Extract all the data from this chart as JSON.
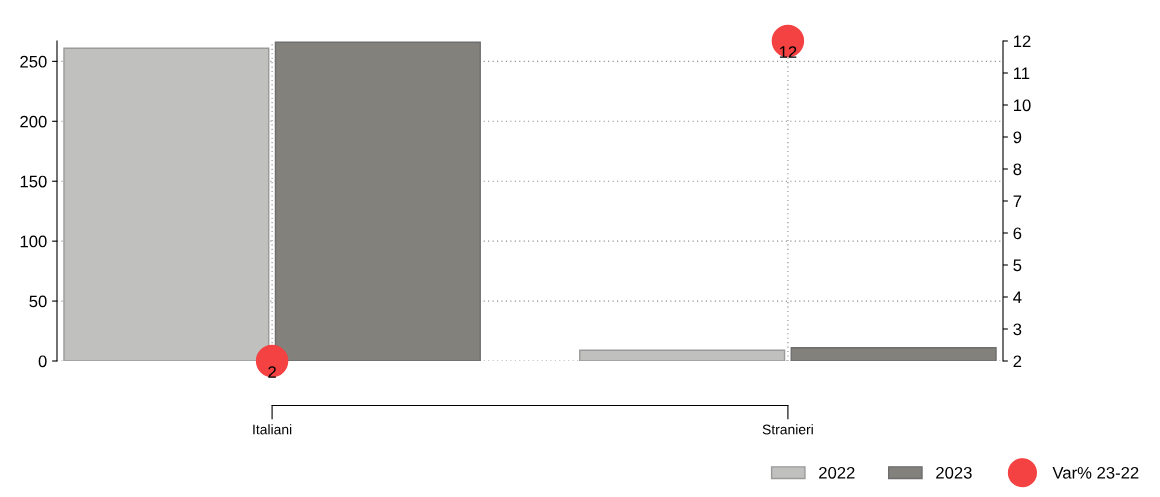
{
  "chart_data": {
    "type": "bar",
    "categories": [
      "Italiani",
      "Stranieri"
    ],
    "series": [
      {
        "name": "2022",
        "color": "#c0c0be",
        "values": [
          261,
          9
        ]
      },
      {
        "name": "2023",
        "color": "#83817c",
        "values": [
          266,
          11
        ]
      },
      {
        "name": "Var% 23-22",
        "type": "scatter",
        "axis": "y2",
        "color": "#f44242",
        "values": [
          2,
          12
        ],
        "value_labels": [
          "2",
          "12"
        ]
      }
    ],
    "ylim": [
      0,
      267
    ],
    "yticks": [
      0,
      50,
      100,
      150,
      200,
      250
    ],
    "y2lim": [
      2,
      12
    ],
    "y2ticks": [
      2,
      3,
      4,
      5,
      6,
      7,
      8,
      9,
      10,
      11,
      12
    ],
    "grid": true,
    "legend": "bottom right",
    "marker": "circle"
  }
}
